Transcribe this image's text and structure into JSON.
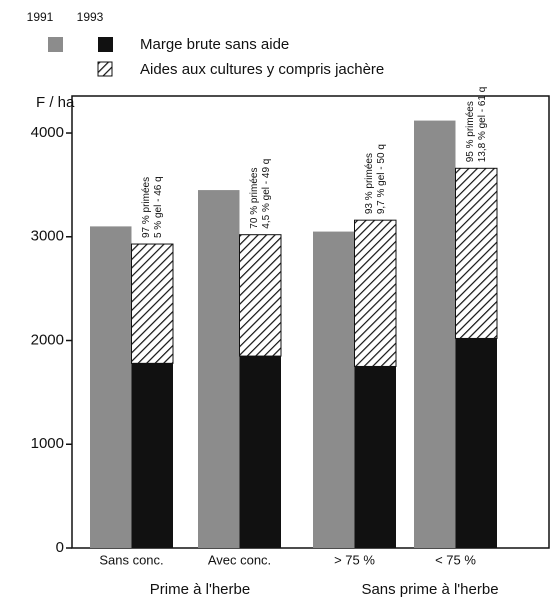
{
  "chart_data": {
    "type": "bar",
    "ylabel": "F / ha",
    "categories": [
      "Sans conc.",
      "Avec conc.",
      "> 75 %",
      "< 75 %"
    ],
    "group_labels": [
      "Prime à l'herbe",
      "Sans prime à l'herbe"
    ],
    "series": [
      {
        "year": "1991",
        "color": "#8c8c8c",
        "values": [
          3100,
          3450,
          3050,
          4120
        ]
      },
      {
        "year": "1993",
        "name": "Marge brute sans aide",
        "color": "#111111",
        "values": [
          1780,
          1850,
          1750,
          2020
        ]
      },
      {
        "name": "Aides aux cultures y compris jachère",
        "pattern": "hatch",
        "values": [
          1150,
          1170,
          1410,
          1640
        ]
      }
    ],
    "annotations": [
      [
        "97 % primées",
        "5 % gel - 46 q"
      ],
      [
        "70 % primées",
        "4,5 % gel - 49 q"
      ],
      [
        "93 % primées",
        "9,7 % gel - 50 q"
      ],
      [
        "95 % primées",
        "13,8 % gel - 61 q"
      ]
    ],
    "ylim": [
      0,
      4300
    ],
    "yticks": [
      0,
      1000,
      2000,
      3000,
      4000
    ]
  }
}
